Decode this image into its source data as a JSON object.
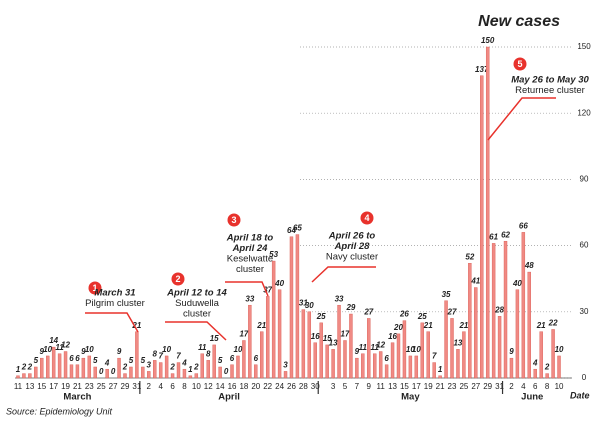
{
  "chart_data": {
    "type": "bar",
    "title": "New cases",
    "source": "Source: Epidemiology Unit",
    "x_label": "Date",
    "months": [
      "March",
      "April",
      "May",
      "June"
    ],
    "categories": [
      "11",
      null,
      "13",
      null,
      "15",
      null,
      "17",
      null,
      "19",
      null,
      "21",
      null,
      "23",
      null,
      "25",
      null,
      "27",
      null,
      "29",
      null,
      "31",
      null,
      "2",
      null,
      "4",
      null,
      "6",
      null,
      "8",
      null,
      "10",
      null,
      "12",
      null,
      "14",
      null,
      "16",
      null,
      "18",
      null,
      "20",
      null,
      "22",
      null,
      "24",
      null,
      "26",
      null,
      "28",
      null,
      "30",
      null,
      null,
      "3",
      null,
      "5",
      null,
      "7",
      null,
      "9",
      null,
      "11",
      null,
      "13",
      null,
      "15",
      null,
      "17",
      null,
      "19",
      null,
      "21",
      null,
      "23",
      null,
      "25",
      null,
      "27",
      null,
      "29",
      null,
      "31",
      null,
      "2",
      null,
      "4",
      null,
      "6",
      null,
      "8",
      null,
      "10"
    ],
    "values": [
      1,
      2,
      2,
      5,
      9,
      10,
      14,
      11,
      12,
      6,
      6,
      9,
      10,
      5,
      0,
      4,
      0,
      9,
      2,
      5,
      21,
      5,
      3,
      8,
      7,
      10,
      2,
      7,
      4,
      1,
      2,
      11,
      8,
      15,
      5,
      0,
      6,
      10,
      17,
      33,
      6,
      21,
      37,
      53,
      40,
      3,
      64,
      65,
      31,
      30,
      16,
      25,
      15,
      13,
      33,
      17,
      29,
      9,
      11,
      27,
      11,
      12,
      6,
      16,
      20,
      26,
      10,
      10,
      25,
      21,
      7,
      1,
      35,
      27,
      13,
      21,
      52,
      41,
      137,
      150,
      61,
      28,
      62,
      9,
      40,
      66,
      48,
      4,
      21,
      2,
      22,
      10
    ],
    "color": "#f08a84",
    "ylim": [
      0,
      150
    ],
    "yticks": [
      0,
      30,
      60,
      90,
      120,
      150
    ],
    "grid": true,
    "annotations": [
      {
        "number": 1,
        "date": [
          "March 31"
        ],
        "label": [
          "Pilgrim cluster"
        ]
      },
      {
        "number": 2,
        "date": [
          "April 12 to 14"
        ],
        "label": [
          "Suduwella",
          "cluster"
        ]
      },
      {
        "number": 3,
        "date": [
          "April 18 to",
          "April 24"
        ],
        "label": [
          "Keselwatte",
          "cluster"
        ]
      },
      {
        "number": 4,
        "date": [
          "April 26 to",
          "April 28"
        ],
        "label": [
          "Navy cluster"
        ]
      },
      {
        "number": 5,
        "date": [
          "May 26 to May 30"
        ],
        "label": [
          "Returnee cluster"
        ]
      }
    ]
  }
}
